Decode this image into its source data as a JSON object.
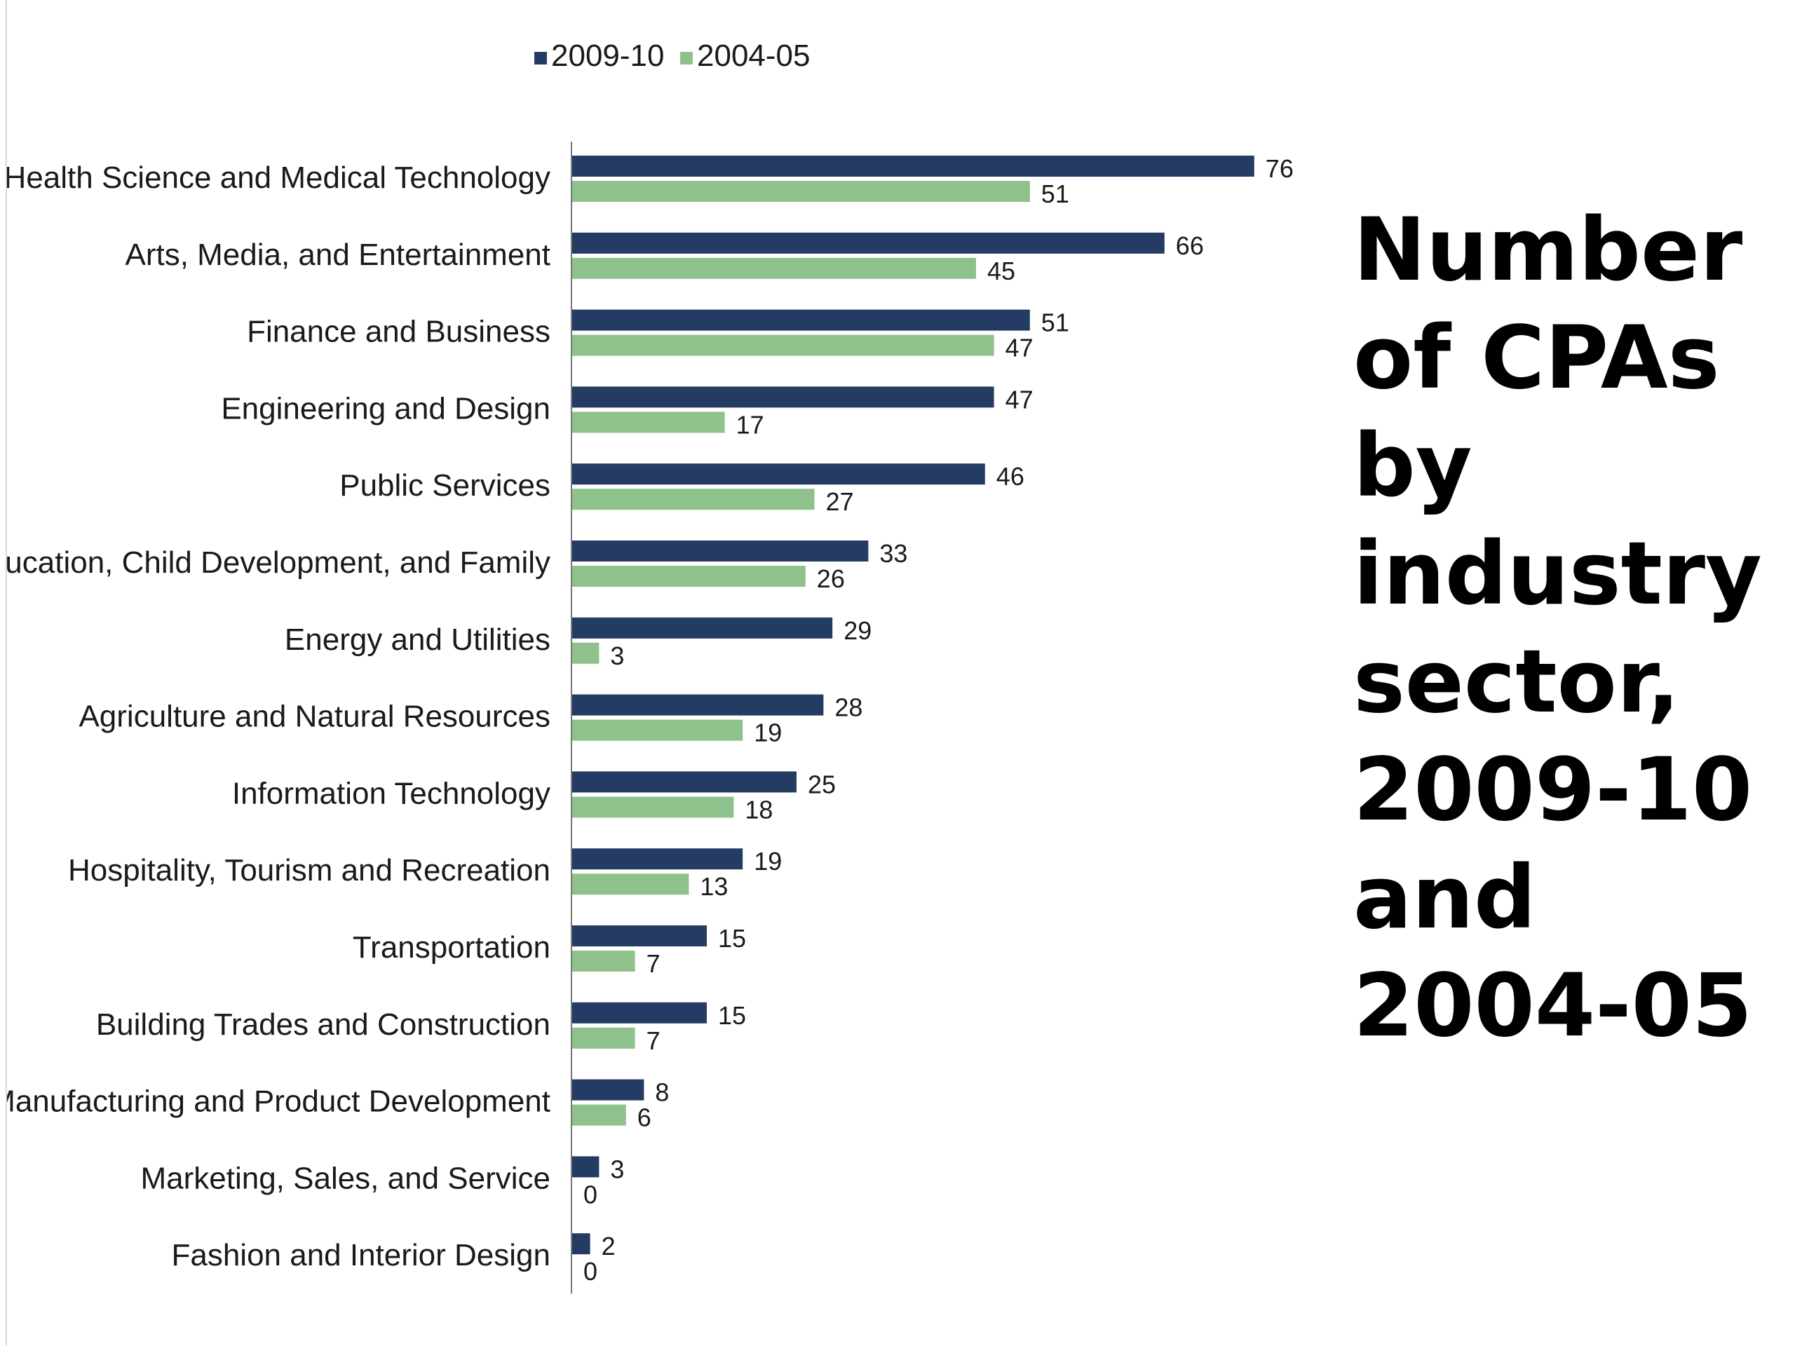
{
  "title": "Number of CPAs by industry sector, 2009-10 and 2004-05",
  "colors": {
    "series_2009": "#243b63",
    "series_2004": "#8fc18c",
    "axis": "#777777"
  },
  "chart_data": {
    "type": "bar",
    "orientation": "horizontal",
    "categories": [
      "Health Science and Medical Technology",
      "Arts, Media, and Entertainment",
      "Finance and Business",
      "Engineering and Design",
      "Public Services",
      "Education, Child Development, and Family",
      "Energy and Utilities",
      "Agriculture and Natural Resources",
      "Information Technology",
      "Hospitality, Tourism and Recreation",
      "Transportation",
      "Building Trades and Construction",
      "Manufacturing and Product Development",
      "Marketing, Sales, and Service",
      "Fashion and Interior Design"
    ],
    "series": [
      {
        "name": "2009-10",
        "values": [
          76,
          66,
          51,
          47,
          46,
          33,
          29,
          28,
          25,
          19,
          15,
          15,
          8,
          3,
          2
        ]
      },
      {
        "name": "2004-05",
        "values": [
          51,
          45,
          47,
          17,
          27,
          26,
          3,
          19,
          18,
          13,
          7,
          7,
          6,
          0,
          0
        ]
      }
    ],
    "legend_position": "top",
    "data_labels": true,
    "grid": false,
    "xlim": [
      0,
      80
    ]
  }
}
